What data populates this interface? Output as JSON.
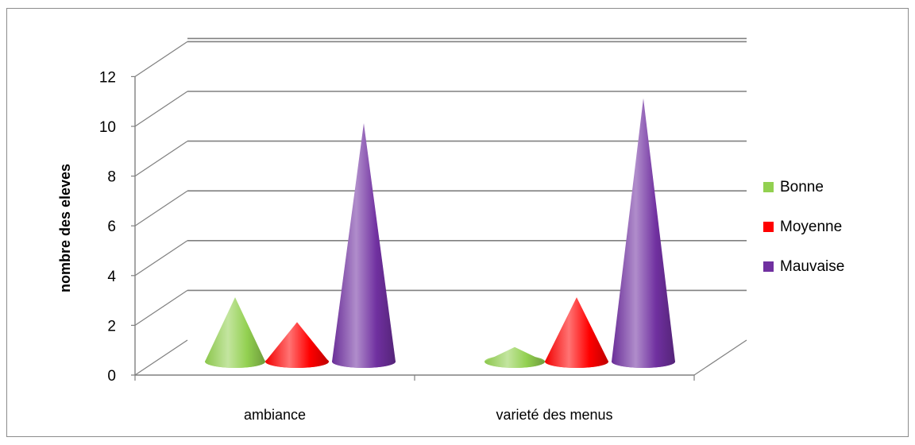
{
  "chart_data": {
    "type": "bar",
    "shape": "3d-cone",
    "categories": [
      "ambiance",
      "varieté des menus"
    ],
    "series": [
      {
        "name": "Bonne",
        "values": [
          3,
          1
        ],
        "color": "#92d050"
      },
      {
        "name": "Moyenne",
        "values": [
          2,
          3
        ],
        "color": "#ff0000"
      },
      {
        "name": "Mauvaise",
        "values": [
          10,
          11
        ],
        "color": "#7030a0"
      }
    ],
    "title": "",
    "xlabel": "",
    "ylabel": "nombre des eleves",
    "ylim": [
      0,
      12
    ],
    "yticks": [
      0,
      2,
      4,
      6,
      8,
      10,
      12
    ],
    "grid": true,
    "legend_position": "right"
  }
}
